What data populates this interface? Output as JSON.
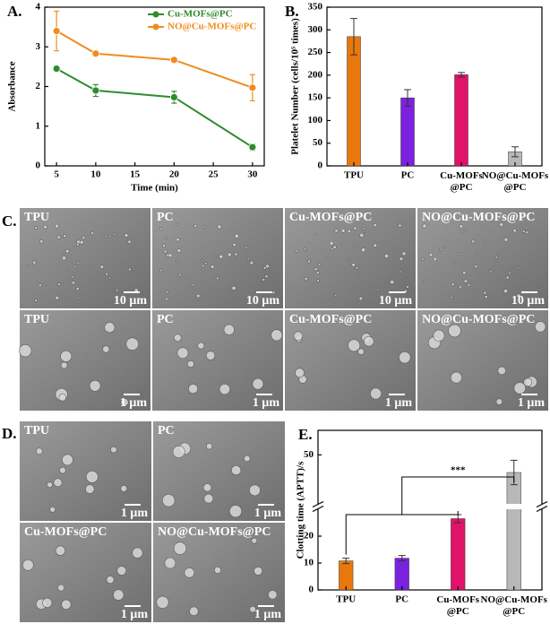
{
  "chart_data": [
    {
      "type": "line",
      "panel": "A.",
      "xlabel": "Time (min)",
      "ylabel": "Absorbance",
      "x": [
        5,
        10,
        20,
        30
      ],
      "xlim": [
        3.5,
        31.5
      ],
      "xticks": [
        5,
        10,
        15,
        20,
        25,
        30
      ],
      "ylim": [
        0,
        4
      ],
      "yticks": [
        0,
        1,
        2,
        3,
        4
      ],
      "legend": "top",
      "series": [
        {
          "name": "Cu-MOFs@PC",
          "color": "#2e8b2e",
          "values": [
            2.45,
            1.9,
            1.73,
            0.47
          ],
          "errors": [
            0.05,
            0.15,
            0.15,
            0.08
          ]
        },
        {
          "name": "NO@Cu-MOFs@PC",
          "color": "#f08c1e",
          "values": [
            3.4,
            2.83,
            2.67,
            1.97
          ],
          "errors": [
            0.5,
            0.05,
            0.05,
            0.33
          ]
        }
      ]
    },
    {
      "type": "bar",
      "panel": "B.",
      "ylabel": "Platelet Number (cells/10⁵ times)",
      "categories": [
        "TPU",
        "PC",
        "Cu-MOFs\n@PC",
        "NO@Cu-MOFs\n@PC"
      ],
      "values": [
        285,
        150,
        201,
        31
      ],
      "errors": [
        40,
        18,
        5,
        11
      ],
      "colors": [
        "#e8780e",
        "#7b22e0",
        "#e0126a",
        "#b8b8b8"
      ],
      "ylim": [
        0,
        350
      ],
      "yticks": [
        0,
        50,
        100,
        150,
        200,
        250,
        300,
        350
      ]
    },
    {
      "type": "bar",
      "panel": "E.",
      "ylabel": "Clotting time (APTT)/s",
      "categories": [
        "TPU",
        "PC",
        "Cu-MOFs\n@PC",
        "NO@Cu-MOFs\n@PC"
      ],
      "values": [
        10.8,
        11.8,
        26.5,
        46.4
      ],
      "errors": [
        1,
        1,
        1.5,
        2.5
      ],
      "colors": [
        "#e8780e",
        "#7b22e0",
        "#e0126a",
        "#b8b8b8"
      ],
      "ylim": [
        0,
        55
      ],
      "ybreak": [
        30,
        40
      ],
      "yticks": [
        0,
        10,
        20,
        50
      ],
      "annotation": "***"
    }
  ],
  "sem_panels": [
    {
      "label": "C.",
      "images": [
        {
          "label": "TPU",
          "scale": "10 μm"
        },
        {
          "label": "PC",
          "scale": "10 μm"
        },
        {
          "label": "Cu-MOFs@PC",
          "scale": "10 μm"
        },
        {
          "label": "NO@Cu-MOFs@PC",
          "scale": "10 μm"
        },
        {
          "label": "TPU",
          "scale": "1 μm"
        },
        {
          "label": "PC",
          "scale": "1 μm"
        },
        {
          "label": "Cu-MOFs@PC",
          "scale": "1 μm"
        },
        {
          "label": "NO@Cu-MOFs@PC",
          "scale": "1 μm"
        }
      ]
    },
    {
      "label": "D.",
      "images": [
        {
          "label": "TPU",
          "scale": "1 μm"
        },
        {
          "label": "PC",
          "scale": "1 μm"
        },
        {
          "label": "Cu-MOFs@PC",
          "scale": "1 μm"
        },
        {
          "label": "NO@Cu-MOFs@PC",
          "scale": "1 μm"
        }
      ]
    }
  ]
}
